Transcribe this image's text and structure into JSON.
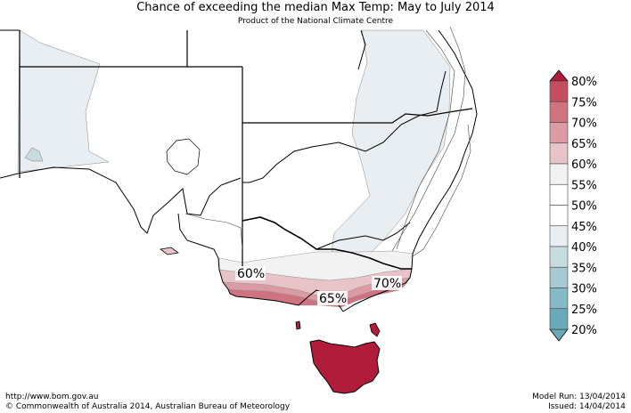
{
  "header": {
    "title": "Chance of exceeding the median Max Temp: May to July 2014",
    "subtitle": "Product of the National Climate Centre"
  },
  "map_labels": [
    "60%",
    "65%",
    "70%"
  ],
  "legend": {
    "labels": [
      "80%",
      "75%",
      "70%",
      "65%",
      "60%",
      "55%",
      "50%",
      "45%",
      "40%",
      "35%",
      "30%",
      "25%",
      "20%"
    ],
    "colors": [
      "#b01c3a",
      "#c24e5e",
      "#cf7381",
      "#dc9aa3",
      "#e8c3c7",
      "#f2f2f2",
      "#ffffff",
      "#ffffff",
      "#e8eef1",
      "#c6dce1",
      "#a5cad3",
      "#86bac6",
      "#6aa9b8"
    ]
  },
  "footer": {
    "url": "http://www.bom.gov.au",
    "copyright": "©  Commonwealth of Australia 2014, Australian Bureau of Meteorology",
    "model_run": "Model Run: 13/04/2014",
    "issued": "Issued: 14/04/2014"
  }
}
